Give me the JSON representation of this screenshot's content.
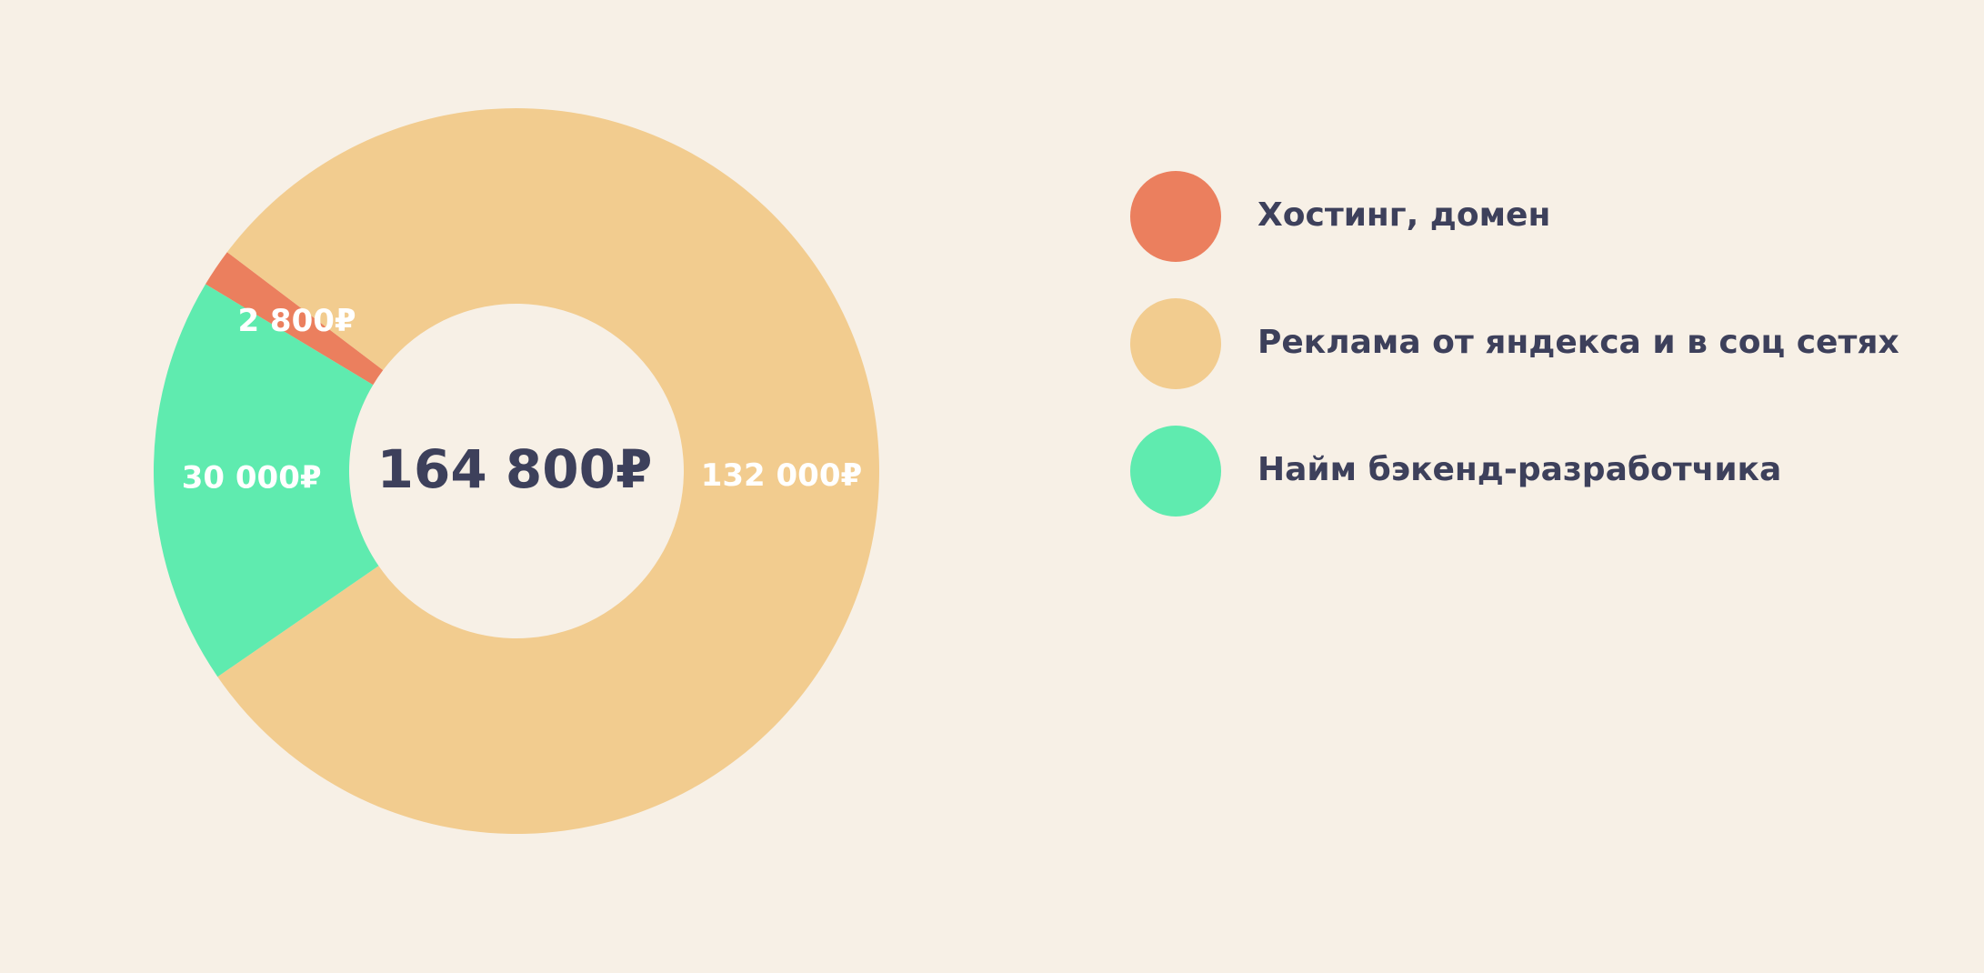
{
  "chart_data": {
    "type": "donut",
    "center_label": "164 800₽",
    "categories": [
      "Хостинг, домен",
      "Реклама от яндекса и в соц сетях",
      "Найм бэкенд-разработчика"
    ],
    "values": [
      2800,
      132000,
      30000
    ],
    "value_labels": [
      "2 800₽",
      "132 000₽",
      "30 000₽"
    ],
    "colors": [
      "#eb7f5e",
      "#f2cc8f",
      "#5febaf"
    ],
    "legend": "right"
  }
}
